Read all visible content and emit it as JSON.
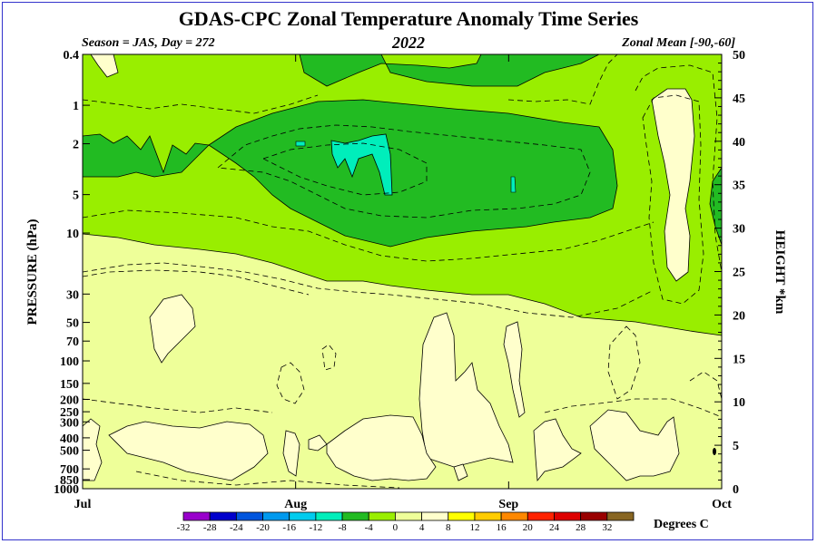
{
  "header": {
    "title": "GDAS-CPC Zonal Temperature Anomaly Time Series",
    "season": "Season = JAS, Day = 272",
    "year": "2022",
    "zonal": "Zonal Mean [-90,-60]"
  },
  "chart_data": {
    "type": "heatmap",
    "ylabel": "PRESSURE (hPa)",
    "y2label": "HEIGHT *km",
    "colorbar_units": "Degrees C",
    "x_ticks": [
      "Jul",
      "Aug",
      "Sep",
      "Oct"
    ],
    "y_ticks": [
      "0.4",
      "1",
      "2",
      "5",
      "10",
      "30",
      "50",
      "70",
      "100",
      "150",
      "200",
      "250",
      "300",
      "400",
      "500",
      "700",
      "850",
      "1000"
    ],
    "y_scale": "log",
    "ylim": [
      1000,
      0.4
    ],
    "y2_ticks": [
      "0",
      "5",
      "10",
      "15",
      "20",
      "25",
      "30",
      "35",
      "40",
      "45",
      "50"
    ],
    "y2lim": [
      0,
      50
    ],
    "colorbar_levels": [
      "-32",
      "-28",
      "-24",
      "-20",
      "-16",
      "-12",
      "-8",
      "-4",
      "0",
      "4",
      "8",
      "12",
      "16",
      "20",
      "24",
      "28",
      "32"
    ],
    "colorbar_colors": [
      "#9900cc",
      "#0000cc",
      "#0055dd",
      "#0099ee",
      "#00ccee",
      "#00eebb",
      "#22bb22",
      "#99ee00",
      "#eeff99",
      "#ffffcc",
      "#ffff00",
      "#ffcc00",
      "#ff8800",
      "#ff2200",
      "#dd0000",
      "#990000",
      "#886622"
    ],
    "colors": {
      "anom_0_to_4": "#ffffcc",
      "anom_-4_to_0": "#eeff99",
      "anom_-8_to_-4": "#99ee00",
      "anom_-12_to_-8": "#22bb22",
      "anom_-16_to_-12": "#00eebb"
    }
  }
}
